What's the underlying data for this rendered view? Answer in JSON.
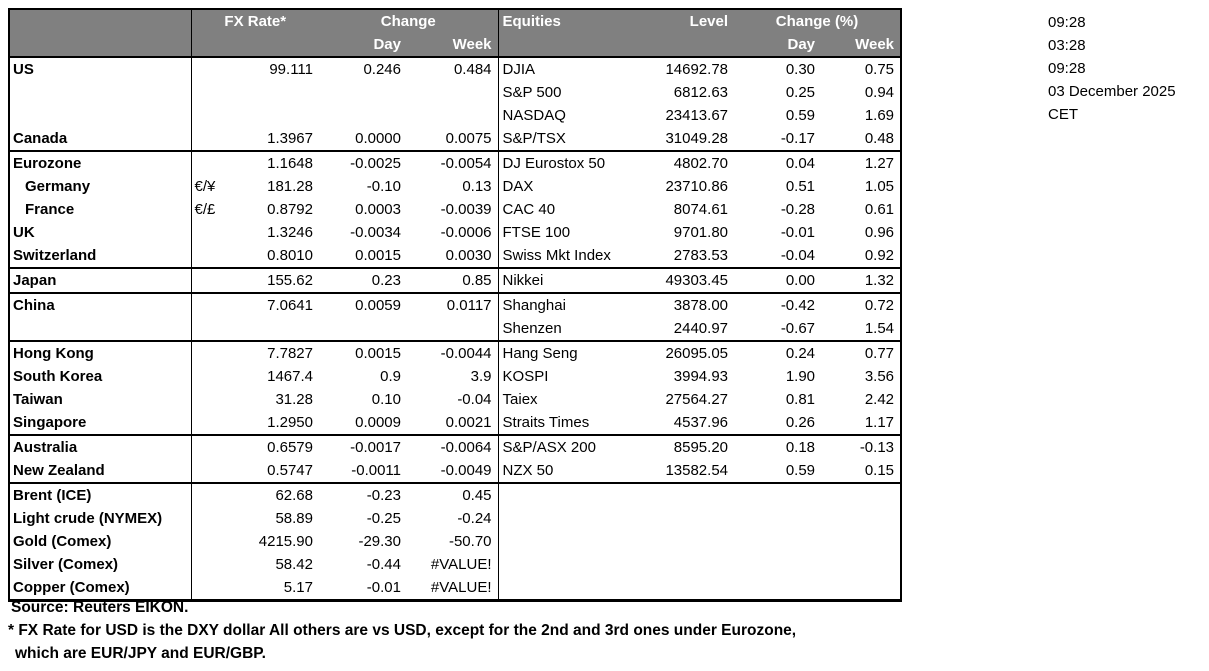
{
  "header": {
    "fx_rate_label": "FX Rate*",
    "fx_change_label": "Change",
    "fx_day_label": "Day",
    "fx_week_label": "Week",
    "equities_label": "Equities",
    "level_label": "Level",
    "eq_change_label": "Change (%)",
    "eq_day_label": "Day",
    "eq_week_label": "Week"
  },
  "rows": [
    {
      "region": "US",
      "pair": "",
      "rate": "99.111",
      "rate_day": "0.246",
      "rate_week": "0.484",
      "index": "DJIA",
      "level": "14692.78",
      "level_day": "0.30",
      "level_week": "0.75",
      "separator": false,
      "indent": false
    },
    {
      "region": "",
      "pair": "",
      "rate": "",
      "rate_day": "",
      "rate_week": "",
      "index": "S&P 500",
      "level": "6812.63",
      "level_day": "0.25",
      "level_week": "0.94",
      "separator": false,
      "indent": false
    },
    {
      "region": "",
      "pair": "",
      "rate": "",
      "rate_day": "",
      "rate_week": "",
      "index": "NASDAQ",
      "level": "23413.67",
      "level_day": "0.59",
      "level_week": "1.69",
      "separator": false,
      "indent": false
    },
    {
      "region": "Canada",
      "pair": "",
      "rate": "1.3967",
      "rate_day": "0.0000",
      "rate_week": "0.0075",
      "index": "S&P/TSX",
      "level": "31049.28",
      "level_day": "-0.17",
      "level_week": "0.48",
      "separator": true,
      "indent": false
    },
    {
      "region": "Eurozone",
      "pair": "",
      "rate": "1.1648",
      "rate_day": "-0.0025",
      "rate_week": "-0.0054",
      "index": "DJ Eurostox 50",
      "level": "4802.70",
      "level_day": "0.04",
      "level_week": "1.27",
      "separator": false,
      "indent": false
    },
    {
      "region": "Germany",
      "pair": "€/¥",
      "rate": "181.28",
      "rate_day": "-0.10",
      "rate_week": "0.13",
      "index": "DAX",
      "level": "23710.86",
      "level_day": "0.51",
      "level_week": "1.05",
      "separator": false,
      "indent": true
    },
    {
      "region": "France",
      "pair": "€/£",
      "rate": "0.8792",
      "rate_day": "0.0003",
      "rate_week": "-0.0039",
      "index": "CAC 40",
      "level": "8074.61",
      "level_day": "-0.28",
      "level_week": "0.61",
      "separator": false,
      "indent": true
    },
    {
      "region": "UK",
      "pair": "",
      "rate": "1.3246",
      "rate_day": "-0.0034",
      "rate_week": "-0.0006",
      "index": "FTSE 100",
      "level": "9701.80",
      "level_day": "-0.01",
      "level_week": "0.96",
      "separator": false,
      "indent": false
    },
    {
      "region": "Switzerland",
      "pair": "",
      "rate": "0.8010",
      "rate_day": "0.0015",
      "rate_week": "0.0030",
      "index": "Swiss Mkt Index",
      "level": "2783.53",
      "level_day": "-0.04",
      "level_week": "0.92",
      "separator": true,
      "indent": false
    },
    {
      "region": "Japan",
      "pair": "",
      "rate": "155.62",
      "rate_day": "0.23",
      "rate_week": "0.85",
      "index": "Nikkei",
      "level": "49303.45",
      "level_day": "0.00",
      "level_week": "1.32",
      "separator": true,
      "indent": false
    },
    {
      "region": "China",
      "pair": "",
      "rate": "7.0641",
      "rate_day": "0.0059",
      "rate_week": "0.0117",
      "index": "Shanghai",
      "level": "3878.00",
      "level_day": "-0.42",
      "level_week": "0.72",
      "separator": false,
      "indent": false
    },
    {
      "region": "",
      "pair": "",
      "rate": "",
      "rate_day": "",
      "rate_week": "",
      "index": "Shenzen",
      "level": "2440.97",
      "level_day": "-0.67",
      "level_week": "1.54",
      "separator": true,
      "indent": false
    },
    {
      "region": "Hong Kong",
      "pair": "",
      "rate": "7.7827",
      "rate_day": "0.0015",
      "rate_week": "-0.0044",
      "index": "Hang Seng",
      "level": "26095.05",
      "level_day": "0.24",
      "level_week": "0.77",
      "separator": false,
      "indent": false
    },
    {
      "region": "South Korea",
      "pair": "",
      "rate": "1467.4",
      "rate_day": "0.9",
      "rate_week": "3.9",
      "index": "KOSPI",
      "level": "3994.93",
      "level_day": "1.90",
      "level_week": "3.56",
      "separator": false,
      "indent": false
    },
    {
      "region": "Taiwan",
      "pair": "",
      "rate": "31.28",
      "rate_day": "0.10",
      "rate_week": "-0.04",
      "index": "Taiex",
      "level": "27564.27",
      "level_day": "0.81",
      "level_week": "2.42",
      "separator": false,
      "indent": false
    },
    {
      "region": "Singapore",
      "pair": "",
      "rate": "1.2950",
      "rate_day": "0.0009",
      "rate_week": "0.0021",
      "index": "Straits Times",
      "level": "4537.96",
      "level_day": "0.26",
      "level_week": "1.17",
      "separator": true,
      "indent": false
    },
    {
      "region": "Australia",
      "pair": "",
      "rate": "0.6579",
      "rate_day": "-0.0017",
      "rate_week": "-0.0064",
      "index": "S&P/ASX  200",
      "level": "8595.20",
      "level_day": "0.18",
      "level_week": "-0.13",
      "separator": false,
      "indent": false
    },
    {
      "region": "New Zealand",
      "pair": "",
      "rate": "0.5747",
      "rate_day": "-0.0011",
      "rate_week": "-0.0049",
      "index": "NZX 50",
      "level": "13582.54",
      "level_day": "0.59",
      "level_week": "0.15",
      "separator": true,
      "indent": false
    },
    {
      "region": "Brent (ICE)",
      "pair": "",
      "rate": "62.68",
      "rate_day": "-0.23",
      "rate_week": "0.45",
      "index": "",
      "level": "",
      "level_day": "",
      "level_week": "",
      "separator": false,
      "indent": false
    },
    {
      "region": "Light crude (NYMEX)",
      "pair": "",
      "rate": "58.89",
      "rate_day": "-0.25",
      "rate_week": "-0.24",
      "index": "",
      "level": "",
      "level_day": "",
      "level_week": "",
      "separator": false,
      "indent": false
    },
    {
      "region": "Gold (Comex)",
      "pair": "",
      "rate": "4215.90",
      "rate_day": "-29.30",
      "rate_week": "-50.70",
      "index": "",
      "level": "",
      "level_day": "",
      "level_week": "",
      "separator": false,
      "indent": false
    },
    {
      "region": "Silver (Comex)",
      "pair": "",
      "rate": "58.42",
      "rate_day": "-0.44",
      "rate_week": "#VALUE!",
      "index": "",
      "level": "",
      "level_day": "",
      "level_week": "",
      "separator": false,
      "indent": false
    },
    {
      "region": "Copper (Comex)",
      "pair": "",
      "rate": "5.17",
      "rate_day": "-0.01",
      "rate_week": "#VALUE!",
      "index": "",
      "level": "",
      "level_day": "",
      "level_week": "",
      "separator": false,
      "indent": false
    }
  ],
  "timestamps": [
    "09:28",
    "03:28",
    "09:28",
    "03 December 2025",
    "CET"
  ],
  "footer": {
    "source": "Source:  Reuters EIKON.",
    "note1": "* FX Rate for USD is the DXY dollar  All others are vs USD, except for the 2nd and 3rd ones under Eurozone,",
    "note2": "which are EUR/JPY and EUR/GBP."
  },
  "colors": {
    "header_bg": "#808080",
    "header_text": "#ffffff",
    "body_text": "#000000",
    "border": "#000000"
  }
}
